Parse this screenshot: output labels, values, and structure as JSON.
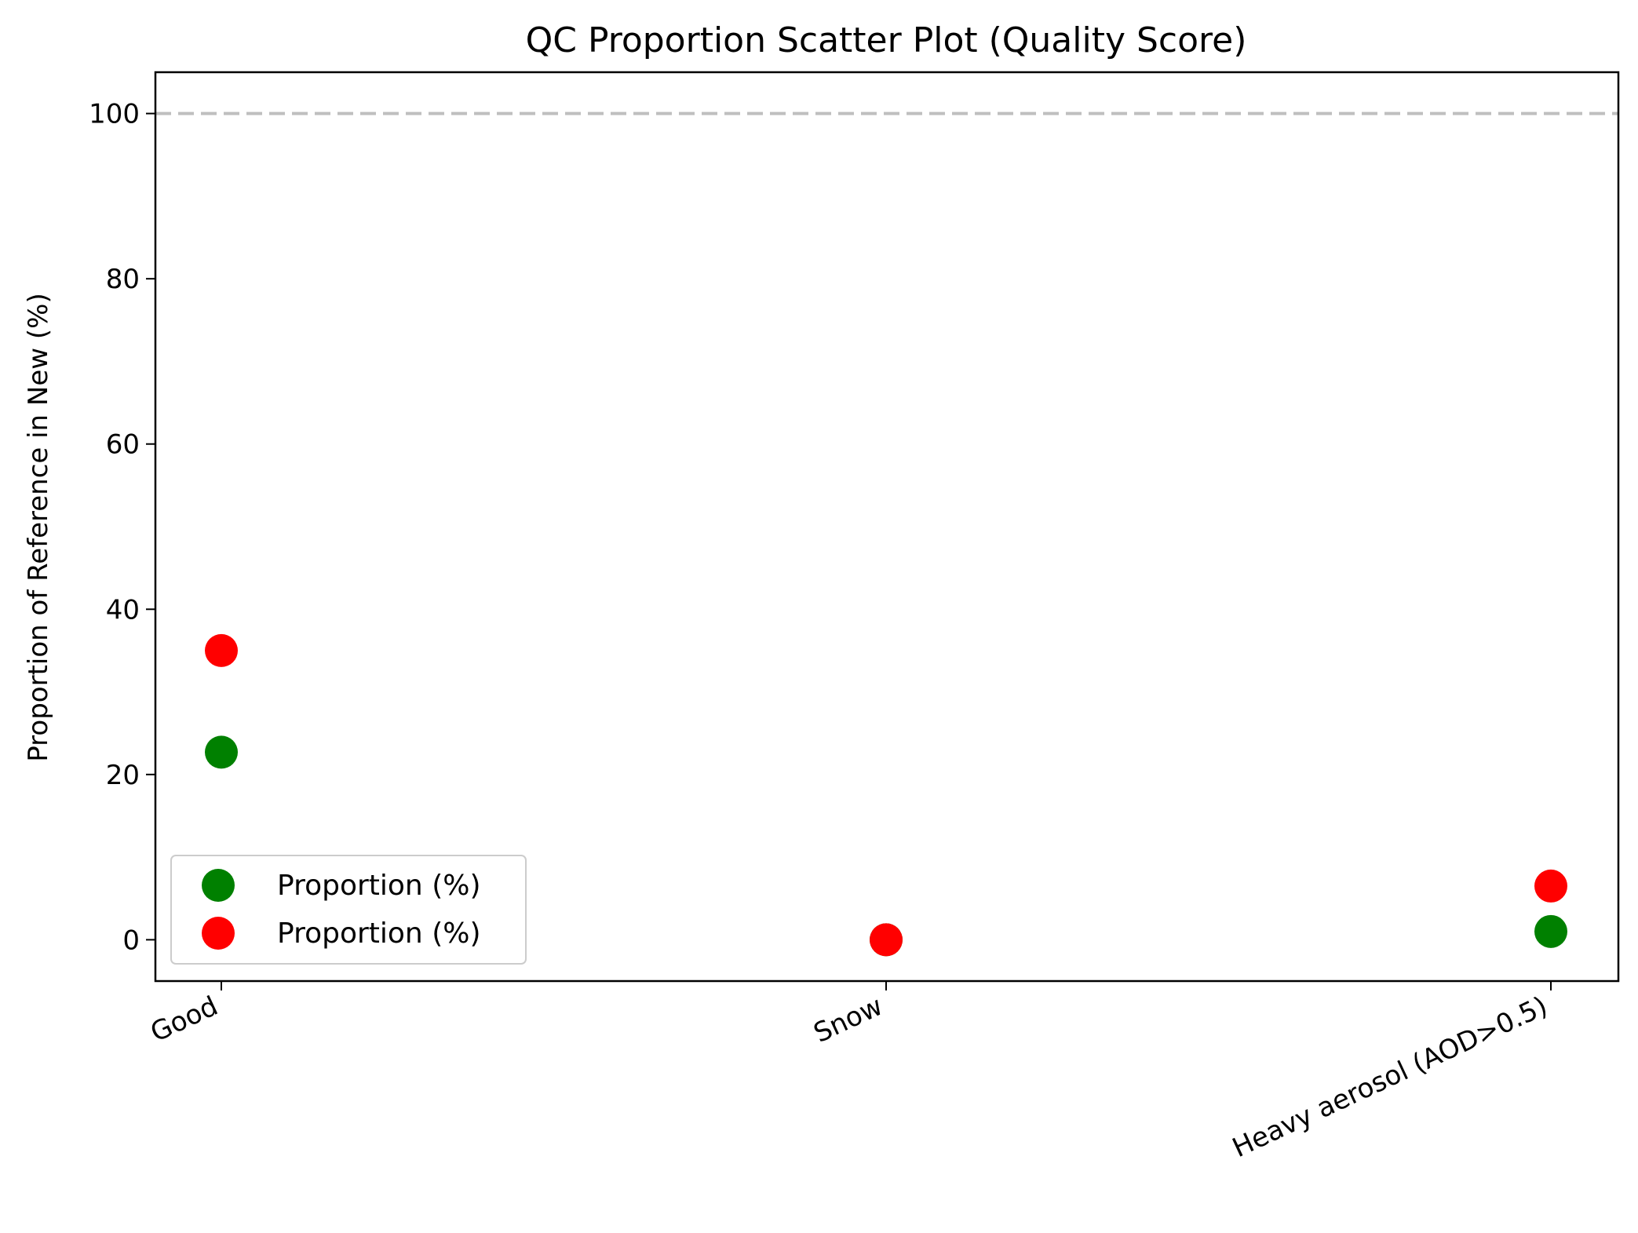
{
  "chart_data": {
    "type": "scatter",
    "title": "QC Proportion Scatter Plot (Quality Score)",
    "xlabel": "",
    "ylabel": "Proportion of Reference in New (%)",
    "categories": [
      "Good",
      "Snow",
      "Heavy aerosol (AOD>0.5)"
    ],
    "ylim": [
      -5,
      105
    ],
    "yticks": [
      0,
      20,
      40,
      60,
      80,
      100
    ],
    "reference_line": {
      "y": 100,
      "style": "dashed",
      "color": "#bfbfbf"
    },
    "grid": false,
    "legend_position": "lower-left",
    "series": [
      {
        "name": "Proportion (%)",
        "color": "#008000",
        "values": [
          22.7,
          0,
          1.0
        ]
      },
      {
        "name": "Proportion (%)",
        "color": "#ff0000",
        "values": [
          35.0,
          0,
          6.5
        ]
      }
    ]
  }
}
